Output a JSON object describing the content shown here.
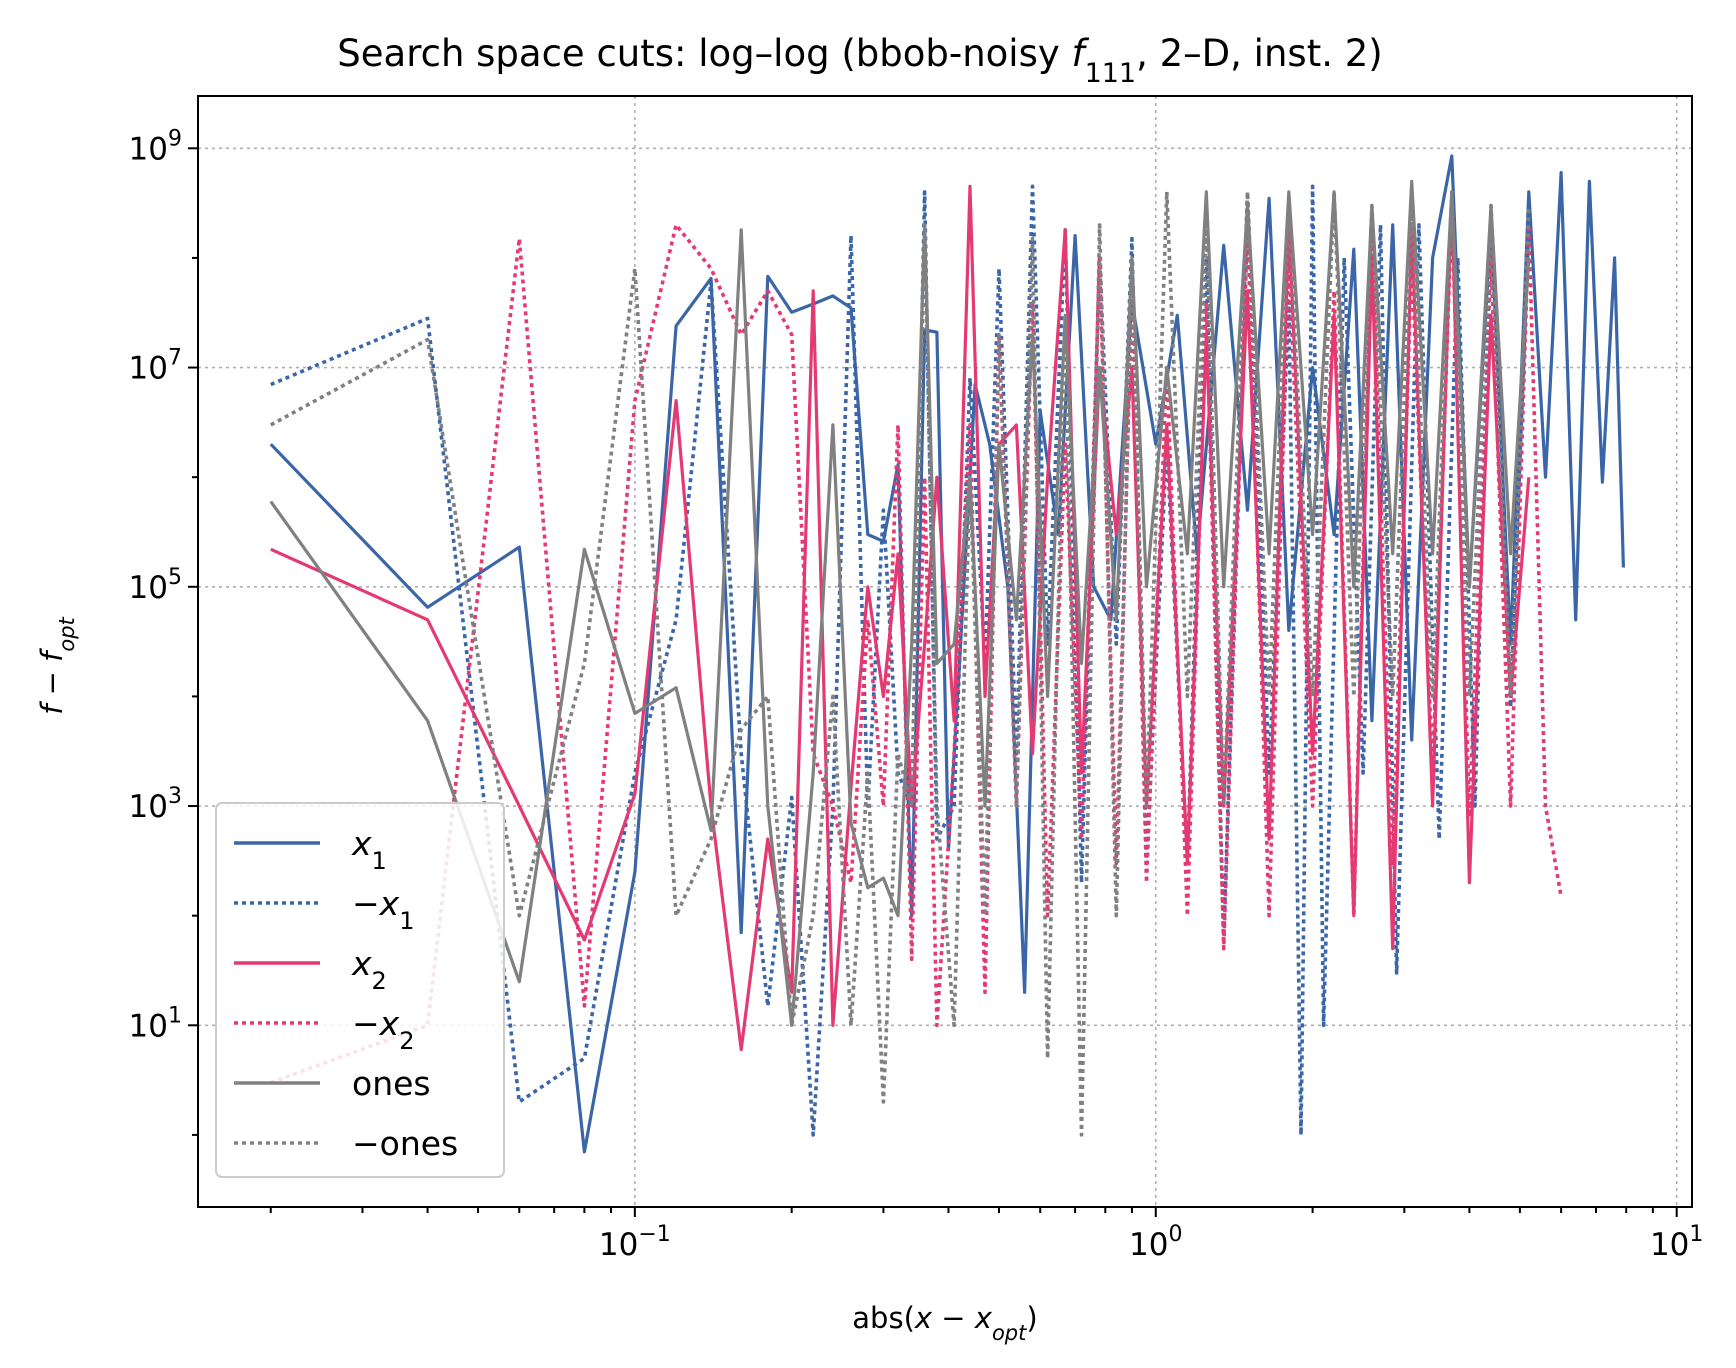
{
  "chart_data": {
    "type": "line",
    "title": "Search space cuts: log–log (bbob-noisy f_111, 2–D, inst. 2)",
    "title_parts": {
      "prefix": "Search space cuts: log–log (bbob-noisy ",
      "func": "f",
      "func_sub": "111",
      "suffix": ", 2–D, inst. 2)"
    },
    "xlabel": "abs(x − x_opt)",
    "xlabel_parts": {
      "prefix": "abs(",
      "var": "x − x",
      "sub": "opt",
      "suffix": ")"
    },
    "ylabel": "f − f_opt",
    "ylabel_parts": {
      "var": "f − f",
      "sub": "opt"
    },
    "xscale": "log",
    "yscale": "log",
    "xlim": [
      0.0145,
      10.7
    ],
    "ylim": [
      0.22,
      3000000000.0
    ],
    "x_ticks": [
      {
        "value": 0.1,
        "base": "10",
        "exp": "−1"
      },
      {
        "value": 1,
        "base": "10",
        "exp": "0"
      },
      {
        "value": 10,
        "base": "10",
        "exp": "1"
      }
    ],
    "y_ticks": [
      {
        "value": 10,
        "base": "10",
        "exp": "1"
      },
      {
        "value": 1000,
        "base": "10",
        "exp": "3"
      },
      {
        "value": 100000,
        "base": "10",
        "exp": "5"
      },
      {
        "value": 10000000,
        "base": "10",
        "exp": "7"
      },
      {
        "value": 1000000000,
        "base": "10",
        "exp": "9"
      }
    ],
    "grid": true,
    "legend_position": "lower-left",
    "series": [
      {
        "name": "x_1",
        "label_base": "x",
        "label_sub": "1",
        "label_prefix": "",
        "color": "#3a66a8",
        "dash": "solid",
        "x": [
          0.02,
          0.04,
          0.06,
          0.08,
          0.1,
          0.12,
          0.14,
          0.16,
          0.18,
          0.2,
          0.22,
          0.24,
          0.26,
          0.28,
          0.3,
          0.32,
          0.34,
          0.36,
          0.38,
          0.4,
          0.42,
          0.45,
          0.48,
          0.52,
          0.56,
          0.6,
          0.65,
          0.7,
          0.76,
          0.82,
          0.9,
          1.0,
          1.1,
          1.2,
          1.35,
          1.5,
          1.65,
          1.8,
          2.0,
          2.2,
          2.4,
          2.6,
          2.85,
          3.1,
          3.4,
          3.7,
          4.0,
          4.4,
          4.8,
          5.2,
          5.6,
          6.0,
          6.4,
          6.8,
          7.2,
          7.6,
          7.9
        ],
        "y": [
          2000000.0,
          65000.0,
          230000.0,
          0.7,
          250,
          24000000.0,
          65000000.0,
          70,
          68000000.0,
          32000000.0,
          38000000.0,
          45000000.0,
          35000000.0,
          300000.0,
          260000.0,
          1300000.0,
          100.0,
          22000000.0,
          21000000.0,
          400.0,
          20000.0,
          7000000.0,
          2000000.0,
          100000.0,
          20,
          4000000.0,
          300000.0,
          160000000.0,
          100000.0,
          50000.0,
          40000000.0,
          2000000.0,
          30000000.0,
          200000.0,
          130000000.0,
          500000.0,
          350000000.0,
          40000.0,
          10000000.0,
          300000.0,
          120000000.0,
          6000.0,
          200000000.0,
          4000.0,
          100000000.0,
          850000000.0,
          100000.0,
          200000000.0,
          30000.0,
          400000000.0,
          1000000.0,
          600000000.0,
          50000.0,
          500000000.0,
          900000.0,
          100000000.0,
          150000.0
        ]
      },
      {
        "name": "−x_1",
        "label_base": "x",
        "label_sub": "1",
        "label_prefix": "−",
        "color": "#3a66a8",
        "dash": "dotted",
        "x": [
          0.02,
          0.04,
          0.06,
          0.08,
          0.1,
          0.12,
          0.14,
          0.16,
          0.18,
          0.2,
          0.22,
          0.24,
          0.26,
          0.28,
          0.3,
          0.32,
          0.34,
          0.36,
          0.38,
          0.41,
          0.44,
          0.47,
          0.5,
          0.54,
          0.58,
          0.62,
          0.67,
          0.72,
          0.78,
          0.84,
          0.9,
          0.96,
          1.05,
          1.15,
          1.25,
          1.35,
          1.5,
          1.65,
          1.8,
          1.9,
          2.0,
          2.1,
          2.3,
          2.5,
          2.7,
          2.9,
          3.2,
          3.5,
          3.8,
          4.1,
          4.4,
          4.8,
          5.2
        ],
        "y": [
          7000000.0,
          28000000.0,
          2.0,
          5.0,
          2000.0,
          50000.0,
          60000000.0,
          3000.0,
          15,
          1200.0,
          1.0,
          1000.0,
          160000000.0,
          1000.0,
          500000.0,
          2000.0,
          1000.0,
          400000000.0,
          500.0,
          1000.0,
          8000000.0,
          20000.0,
          80000000.0,
          3000.0,
          450000000.0,
          30000.0,
          180000000.0,
          200.0,
          100000000.0,
          30000.0,
          150000000.0,
          300.0,
          2000000.0,
          300.0,
          100000000.0,
          60,
          400000000.0,
          2000.0,
          40000000.0,
          1.0,
          450000000.0,
          10,
          100000000.0,
          2000.0,
          200000000.0,
          30,
          200000000.0,
          500.0,
          100000000.0,
          1000.0,
          300000000.0,
          8000.0,
          200000000.0
        ]
      },
      {
        "name": "x_2",
        "label_base": "x",
        "label_sub": "2",
        "label_prefix": "",
        "color": "#e43a72",
        "dash": "solid",
        "x": [
          0.02,
          0.04,
          0.06,
          0.08,
          0.1,
          0.12,
          0.14,
          0.16,
          0.18,
          0.2,
          0.22,
          0.24,
          0.26,
          0.28,
          0.3,
          0.32,
          0.34,
          0.36,
          0.38,
          0.41,
          0.44,
          0.47,
          0.5,
          0.54,
          0.58,
          0.62,
          0.67,
          0.72,
          0.78,
          0.84,
          0.9,
          0.96,
          1.05,
          1.15,
          1.25,
          1.35,
          1.5,
          1.65,
          1.8,
          2.0,
          2.2,
          2.4,
          2.6,
          2.85,
          3.1,
          3.4,
          3.7,
          4.0,
          4.4,
          4.8,
          5.2
        ],
        "y": [
          220000.0,
          50000.0,
          1000.0,
          60,
          1300.0,
          5000000.0,
          1000.0,
          6.0,
          500.0,
          20,
          50000000.0,
          10,
          1500.0,
          100000.0,
          10000.0,
          200000.0,
          1000.0,
          30000.0,
          1000000.0,
          6000.0,
          450000000.0,
          10000.0,
          2000000.0,
          3000000.0,
          3000.0,
          1000000.0,
          180000000.0,
          2000.0,
          10000000.0,
          300000.0,
          10000000.0,
          1000.0,
          3000000.0,
          300.0,
          20000000.0,
          1000.0,
          50000000.0,
          500.0,
          200000000.0,
          3000.0,
          30000000.0,
          100.0,
          100000000.0,
          50,
          200000000.0,
          1000.0,
          400000000.0,
          200.0,
          30000000.0,
          10000.0,
          1000000.0
        ]
      },
      {
        "name": "−x_2",
        "label_base": "x",
        "label_sub": "2",
        "label_prefix": "−",
        "color": "#e43a72",
        "dash": "dotted",
        "x": [
          0.02,
          0.04,
          0.06,
          0.08,
          0.1,
          0.12,
          0.14,
          0.16,
          0.18,
          0.2,
          0.22,
          0.24,
          0.26,
          0.28,
          0.3,
          0.32,
          0.34,
          0.36,
          0.38,
          0.41,
          0.44,
          0.47,
          0.5,
          0.54,
          0.58,
          0.62,
          0.67,
          0.72,
          0.78,
          0.84,
          0.9,
          0.96,
          1.05,
          1.15,
          1.25,
          1.35,
          1.5,
          1.65,
          1.8,
          2.0,
          2.2,
          2.4,
          2.6,
          2.85,
          3.1,
          3.4,
          3.7,
          4.0,
          4.4,
          4.8,
          5.2,
          5.6,
          6.0
        ],
        "y": [
          3.0,
          10,
          150000000.0,
          15,
          5000000.0,
          200000000.0,
          80000000.0,
          20000000.0,
          50000000.0,
          20000000.0,
          3000.0,
          1000.0,
          200.0,
          50000.0,
          1000.0,
          3000000.0,
          40,
          1000000.0,
          10,
          3000.0,
          3000000.0,
          20,
          20000000.0,
          1000.0,
          40000000.0,
          100.0,
          2000000.0,
          500.0,
          100000000.0,
          300.0,
          50000000.0,
          200.0,
          10000000.0,
          100.0,
          40000000.0,
          50,
          200000000.0,
          100.0,
          100000000.0,
          1000.0,
          50000000.0,
          100.0,
          200000000.0,
          300.0,
          100000000.0,
          2000.0,
          300000000.0,
          800.0,
          100000000.0,
          1000.0,
          200000000.0,
          1000.0,
          150.0
        ]
      },
      {
        "name": "ones",
        "label_base": "",
        "label_sub": "",
        "label_prefix": "",
        "label_text": "ones",
        "color": "#808080",
        "dash": "solid",
        "x": [
          0.02,
          0.04,
          0.06,
          0.08,
          0.1,
          0.12,
          0.14,
          0.16,
          0.18,
          0.2,
          0.22,
          0.24,
          0.26,
          0.28,
          0.3,
          0.32,
          0.34,
          0.36,
          0.38,
          0.41,
          0.44,
          0.47,
          0.5,
          0.54,
          0.58,
          0.62,
          0.67,
          0.72,
          0.78,
          0.84,
          0.9,
          0.96,
          1.05,
          1.15,
          1.25,
          1.35,
          1.5,
          1.65,
          1.8,
          2.0,
          2.2,
          2.4,
          2.6,
          2.85,
          3.1,
          3.4,
          3.7,
          4.0,
          4.4,
          4.8,
          5.2
        ],
        "y": [
          600000.0,
          6000.0,
          25,
          220000.0,
          7000.0,
          12000.0,
          600.0,
          180000000.0,
          1000.0,
          10,
          2000.0,
          3000000.0,
          700.0,
          180.0,
          220.0,
          100.0,
          30000.0,
          200000000.0,
          20000.0,
          30000.0,
          1000000.0,
          1000.0,
          2000000.0,
          50000.0,
          20000000.0,
          10000.0,
          30000000.0,
          20000.0,
          10000000.0,
          50000.0,
          100000000.0,
          100000.0,
          10000000.0,
          200000.0,
          400000000.0,
          100000.0,
          300000000.0,
          200000.0,
          400000000.0,
          300000.0,
          400000000.0,
          100000.0,
          300000000.0,
          200000.0,
          500000000.0,
          200000.0,
          400000000.0,
          100000.0,
          300000000.0,
          200000.0,
          100000000.0
        ]
      },
      {
        "name": "−ones",
        "label_base": "",
        "label_sub": "",
        "label_prefix": "",
        "label_text": "−ones",
        "color": "#808080",
        "dash": "dotted",
        "x": [
          0.02,
          0.04,
          0.06,
          0.08,
          0.1,
          0.12,
          0.14,
          0.16,
          0.18,
          0.2,
          0.22,
          0.24,
          0.26,
          0.28,
          0.3,
          0.32,
          0.34,
          0.36,
          0.38,
          0.41,
          0.44,
          0.47,
          0.5,
          0.54,
          0.58,
          0.62,
          0.67,
          0.72,
          0.78,
          0.84,
          0.9,
          0.96,
          1.05,
          1.15,
          1.25,
          1.35,
          1.5,
          1.65,
          1.8,
          2.0,
          2.2,
          2.4,
          2.6,
          2.85,
          3.1,
          3.4,
          3.7,
          4.0,
          4.4,
          4.8,
          5.2
        ],
        "y": [
          3000000.0,
          18000000.0,
          100.0,
          20000.0,
          80000000.0,
          100.0,
          500.0,
          5000.0,
          10000.0,
          10,
          100.0,
          10000.0,
          10,
          2000.0,
          2.0,
          3000.0,
          1000.0,
          200000000.0,
          1000.0,
          10,
          1000000.0,
          100.0,
          20000000.0,
          1000.0,
          150000000.0,
          5.0,
          30000000.0,
          1.0,
          200000000.0,
          100.0,
          100000000.0,
          1000.0,
          400000000.0,
          10000.0,
          200000000.0,
          1000.0,
          400000000.0,
          10000.0,
          300000000.0,
          10000.0,
          400000000.0,
          10000.0,
          300000000.0,
          10000.0,
          300000000.0,
          10000.0,
          400000000.0,
          10000.0,
          200000000.0,
          10000.0,
          300000000.0
        ]
      }
    ]
  }
}
